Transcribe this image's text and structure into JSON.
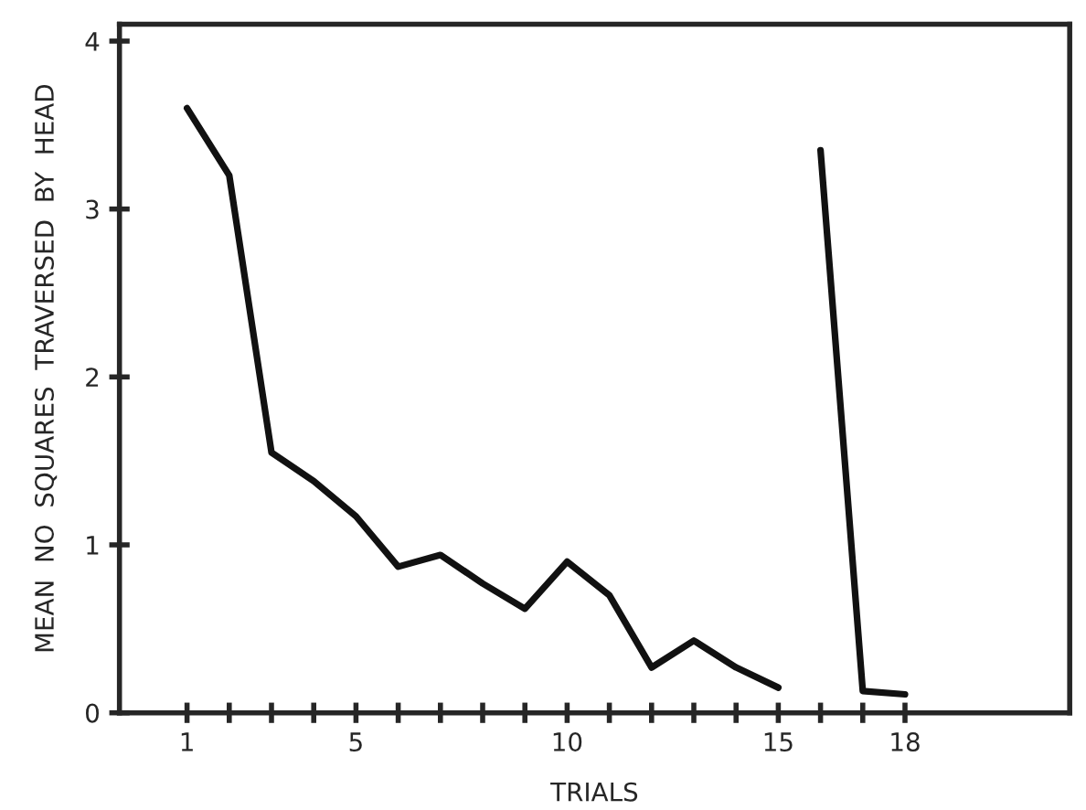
{
  "chart_data": {
    "type": "line",
    "xlabel": "TRIALS",
    "ylabel": "MEAN  NO  SQUARES  TRAVERSED  BY  HEAD",
    "series": [
      {
        "color": "#111111",
        "x": [
          1,
          2,
          3,
          4,
          5,
          6,
          7,
          8,
          9,
          10,
          11,
          12,
          13,
          14,
          15
        ],
        "values": [
          3.6,
          3.2,
          1.55,
          1.38,
          1.17,
          0.87,
          0.94,
          0.77,
          0.62,
          0.9,
          0.7,
          0.27,
          0.43,
          0.27,
          0.15
        ]
      },
      {
        "color": "#111111",
        "x": [
          16,
          17,
          18
        ],
        "values": [
          3.35,
          0.13,
          0.11
        ]
      }
    ],
    "xlim": [
      -0.6,
      21.9
    ],
    "ylim": [
      0,
      4.1
    ],
    "xticks": [
      1,
      {
        "value": 2,
        "label": null
      },
      {
        "value": 3,
        "label": null
      },
      {
        "value": 4,
        "label": null
      },
      5,
      {
        "value": 6,
        "label": null
      },
      {
        "value": 7,
        "label": null
      },
      {
        "value": 8,
        "label": null
      },
      {
        "value": 9,
        "label": null
      },
      10,
      {
        "value": 11,
        "label": null
      },
      {
        "value": 12,
        "label": null
      },
      {
        "value": 13,
        "label": null
      },
      {
        "value": 14,
        "label": null
      },
      15,
      {
        "value": 16,
        "label": null
      },
      {
        "value": 17,
        "label": null
      },
      18
    ],
    "yticks": [
      0,
      1,
      2,
      3,
      4
    ],
    "grid": false,
    "line_style": "solid",
    "marker": "none"
  }
}
